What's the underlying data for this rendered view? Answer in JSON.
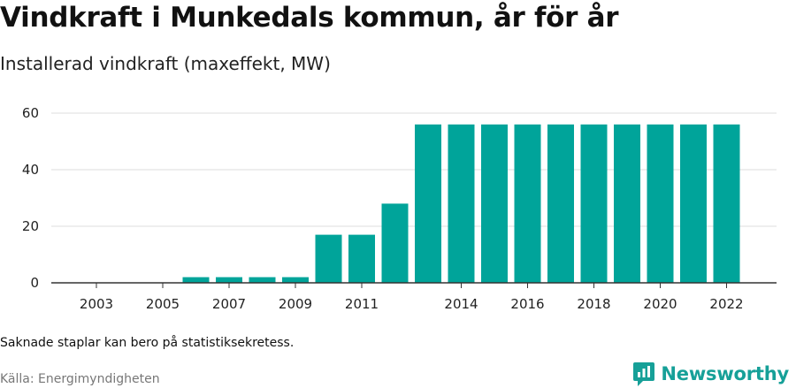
{
  "header": {
    "title": "Vindkraft i Munkedals kommun, år för år",
    "subtitle": "Installerad vindkraft (maxeffekt, MW)"
  },
  "footer": {
    "note": "Saknade staplar kan bero på statistiksekretess.",
    "source": "Källa: Energimyndigheten",
    "brand": "Newsworthy"
  },
  "colors": {
    "bar": "#00a49a",
    "grid": "#dddddd",
    "axis": "#333333",
    "brand": "#16a098"
  },
  "chart_data": {
    "type": "bar",
    "title": "Vindkraft i Munkedals kommun, år för år",
    "subtitle": "Installerad vindkraft (maxeffekt, MW)",
    "xlabel": "",
    "ylabel": "",
    "categories": [
      "2003",
      "2004",
      "2005",
      "2006",
      "2007",
      "2008",
      "2009",
      "2010",
      "2011",
      "2012",
      "2013",
      "2014",
      "2015",
      "2016",
      "2017",
      "2018",
      "2019",
      "2020",
      "2021",
      "2022"
    ],
    "values": [
      0,
      0,
      0,
      2,
      2,
      2,
      2,
      17,
      17,
      28,
      56,
      56,
      56,
      56,
      56,
      56,
      56,
      56,
      56,
      56
    ],
    "x_tick_labels": [
      "2003",
      "2005",
      "2007",
      "2009",
      "2011",
      "2014",
      "2016",
      "2018",
      "2020",
      "2022"
    ],
    "y_ticks": [
      0,
      20,
      40,
      60
    ],
    "ylim": [
      0,
      60
    ],
    "grid": true,
    "legend": "none"
  }
}
